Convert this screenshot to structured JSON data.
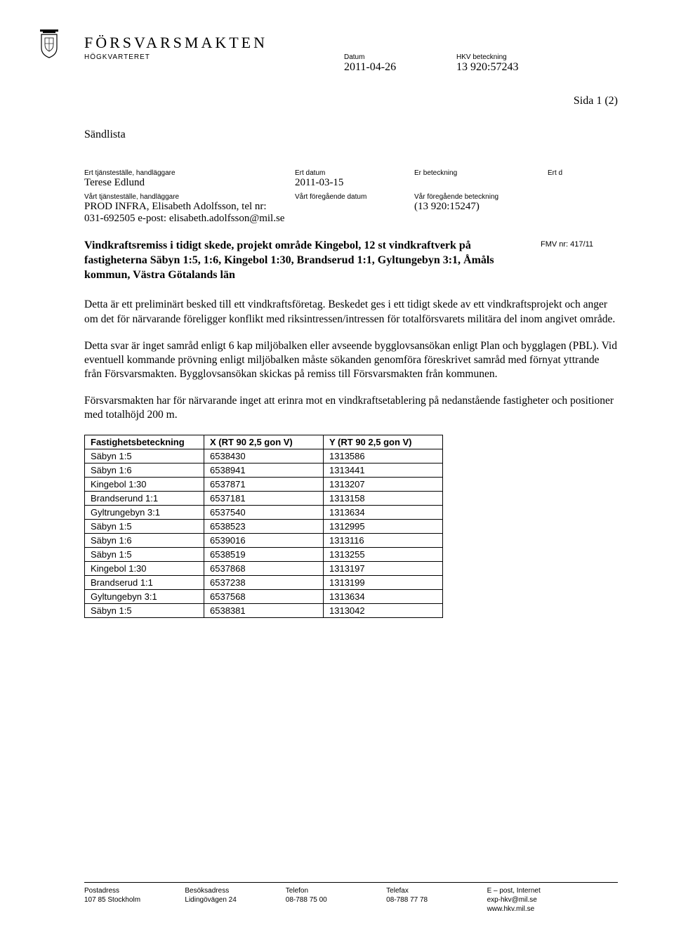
{
  "header": {
    "org_name": "FÖRSVARSMAKTEN",
    "sub_org": "HÖGKVARTERET",
    "datum_label": "Datum",
    "datum": "2011-04-26",
    "hkv_label": "HKV beteckning",
    "hkv": "13 920:57243"
  },
  "page_indicator": "Sida 1 (2)",
  "sandlista": "Sändlista",
  "refs": {
    "row1": {
      "c1_label": "Ert tjänsteställe, handläggare",
      "c2_label": "Ert datum",
      "c3_label": "Er beteckning",
      "c4_label": "Ert d",
      "c1_val": "Terese Edlund",
      "c2_val": "2011-03-15",
      "c3_val": "",
      "c4_val": ""
    },
    "row2": {
      "c1_label": "Vårt tjänsteställe, handläggare",
      "c2_label": "Vårt föregående datum",
      "c3_label": "Vår föregående beteckning",
      "c1_val": "PROD INFRA, Elisabeth Adolfsson, tel nr: 031-692505 e-post: elisabeth.adolfsson@mil.se",
      "c3_val": "(13 920:15247)"
    }
  },
  "title": "Vindkraftsremiss i tidigt skede, projekt område Kingebol, 12 st vindkraftverk på fastigheterna Säbyn 1:5, 1:6, Kingebol 1:30, Brandserud 1:1, Gyltungebyn 3:1, Åmåls kommun, Västra Götalands län",
  "fmv": "FMV nr: 417/11",
  "paragraphs": {
    "p1": "Detta är ett preliminärt besked till ett vindkraftsföretag. Beskedet ges i ett tidigt skede av ett vindkraftsprojekt och anger om det för närvarande föreligger konflikt med riksintressen/intressen för totalförsvarets militära del inom angivet område.",
    "p2": "Detta svar är inget samråd enligt 6 kap miljöbalken eller avseende bygglovsansökan enligt Plan och bygglagen (PBL). Vid eventuell kommande prövning enligt miljöbalken måste sökanden genomföra föreskrivet samråd med förnyat yttrande från Försvarsmakten. Bygglovsansökan skickas på remiss till Försvarsmakten från kommunen.",
    "p3": "Försvarsmakten har för närvarande inget att erinra mot en vindkraftsetablering på nedanstående fastigheter och positioner med totalhöjd 200 m."
  },
  "table": {
    "columns": [
      "Fastighetsbeteckning",
      "X (RT 90 2,5 gon V)",
      "Y (RT 90 2,5 gon V)"
    ],
    "rows": [
      [
        "Säbyn 1:5",
        "6538430",
        "1313586"
      ],
      [
        "Säbyn 1:6",
        "6538941",
        "1313441"
      ],
      [
        "Kingebol 1:30",
        "6537871",
        "1313207"
      ],
      [
        "Brandserund 1:1",
        "6537181",
        "1313158"
      ],
      [
        "Gyltrungebyn 3:1",
        "6537540",
        "1313634"
      ],
      [
        "Säbyn 1:5",
        "6538523",
        "1312995"
      ],
      [
        "Säbyn 1:6",
        "6539016",
        "1313116"
      ],
      [
        "Säbyn 1:5",
        "6538519",
        "1313255"
      ],
      [
        "Kingebol 1:30",
        "6537868",
        "1313197"
      ],
      [
        "Brandserud 1:1",
        "6537238",
        "1313199"
      ],
      [
        "Gyltungebyn 3:1",
        "6537568",
        "1313634"
      ],
      [
        "Säbyn 1:5",
        "6538381",
        "1313042"
      ]
    ],
    "col_widths": [
      "170px",
      "170px",
      "170px"
    ]
  },
  "footer": {
    "cols": [
      {
        "label": "Postadress",
        "val": "107 85 Stockholm"
      },
      {
        "label": "Besöksadress",
        "val": "Lidingövägen 24"
      },
      {
        "label": "Telefon",
        "val": "08-788 75 00"
      },
      {
        "label": "Telefax",
        "val": "08-788 77 78"
      },
      {
        "label": "E – post, Internet",
        "val": "exp-hkv@mil.se\nwww.hkv.mil.se"
      }
    ]
  },
  "colors": {
    "text": "#000000",
    "bg": "#ffffff",
    "border": "#000000"
  }
}
